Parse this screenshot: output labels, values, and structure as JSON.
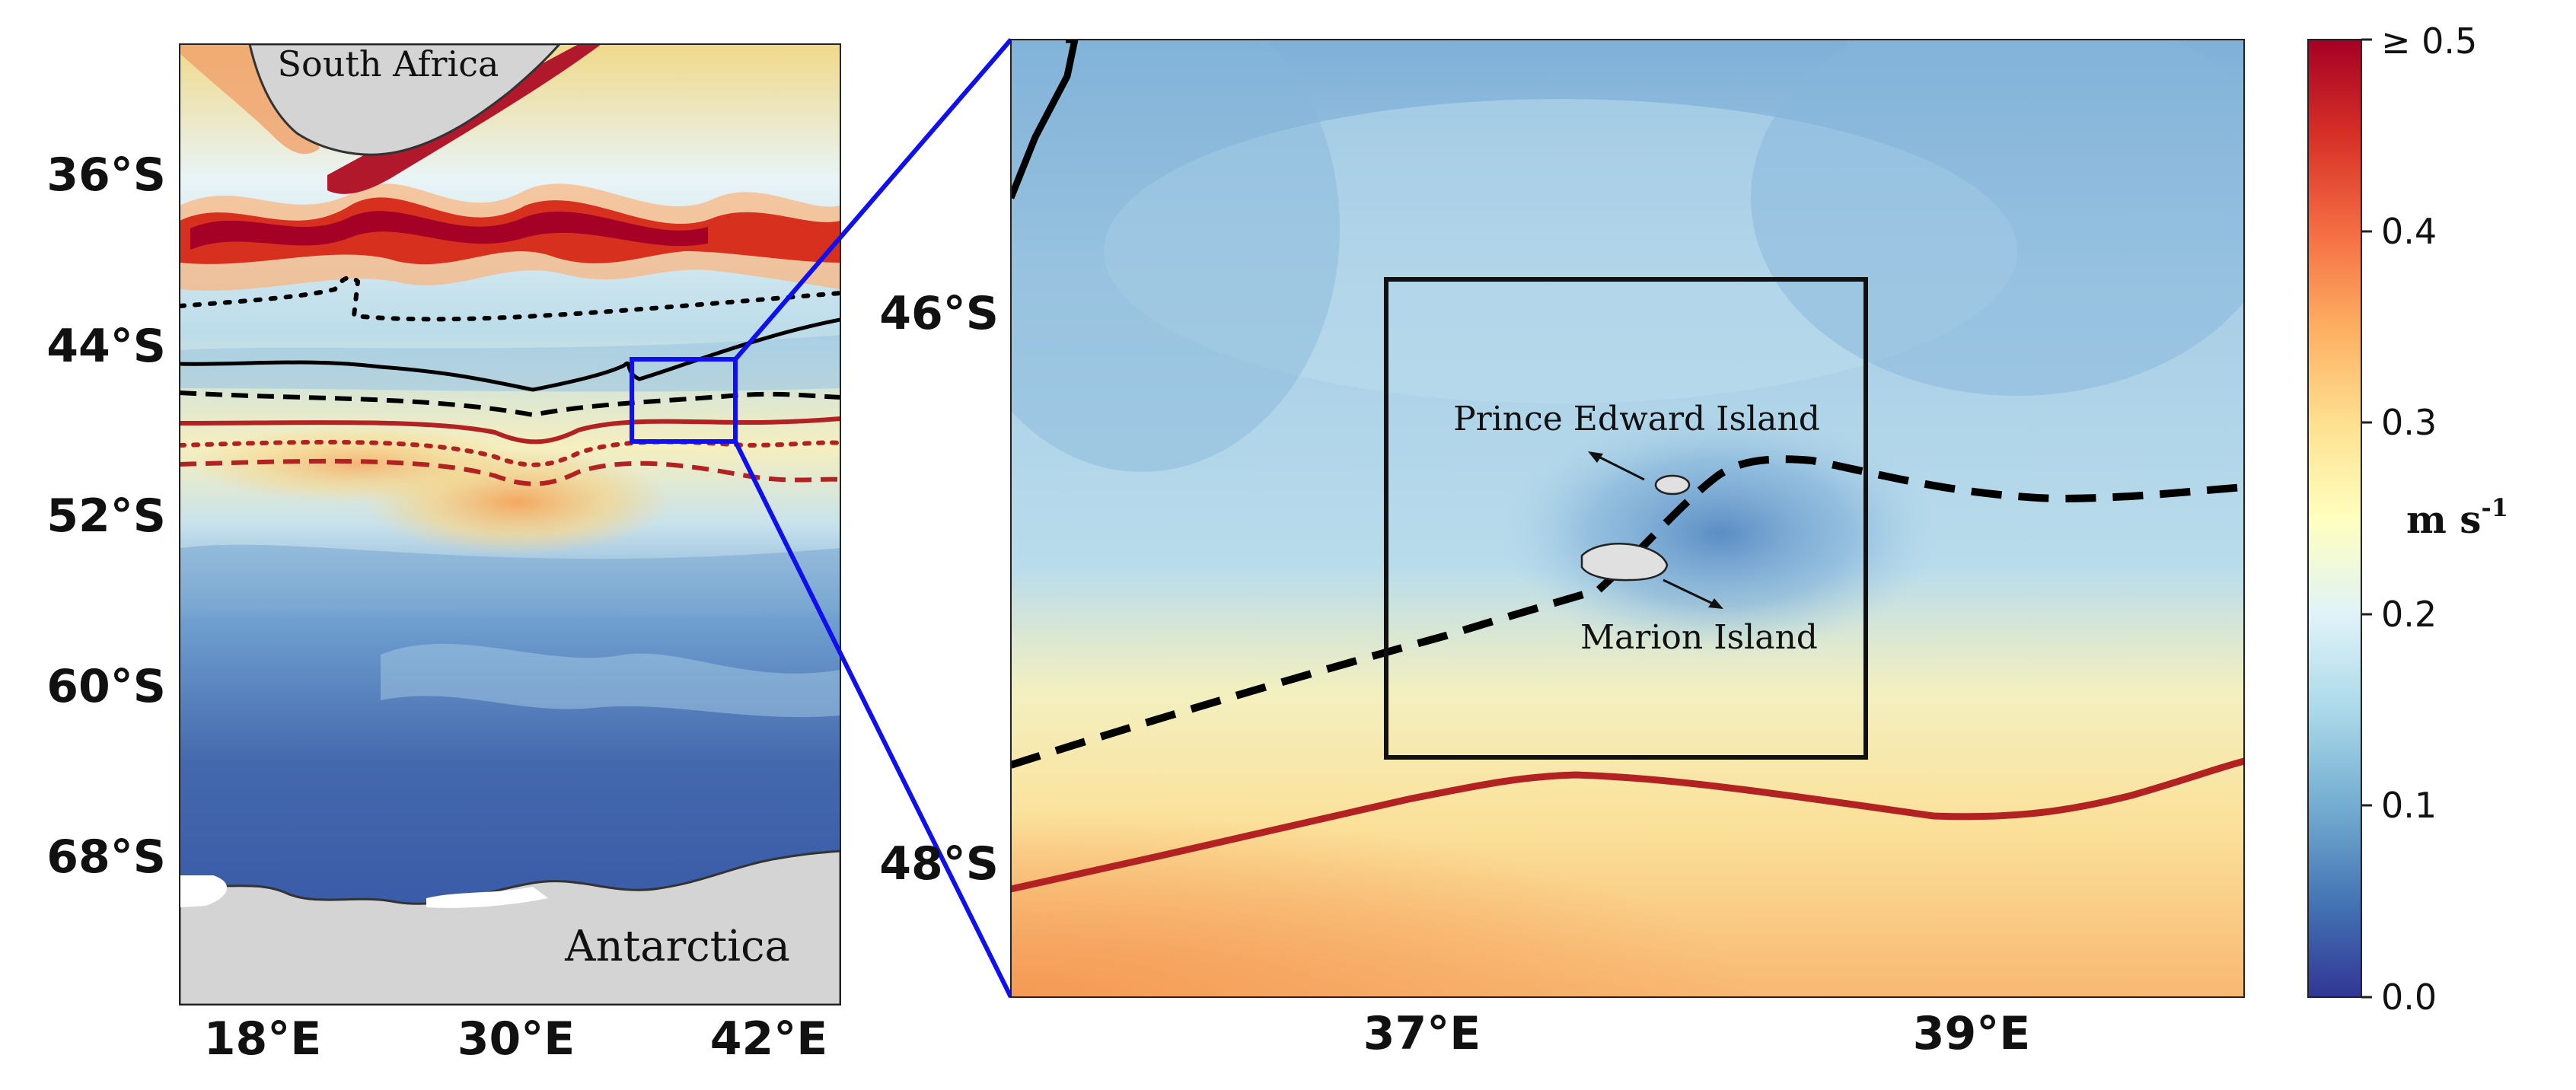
{
  "left_map": {
    "lat_ticks": [
      "36°S",
      "44°S",
      "52°S",
      "60°S",
      "68°S"
    ],
    "lon_ticks": [
      "18°E",
      "30°E",
      "42°E"
    ],
    "labels": {
      "south_africa": "South Africa",
      "antarctica": "Antarctica"
    }
  },
  "right_map": {
    "lat_ticks": [
      "46°S",
      "48°S"
    ],
    "lon_ticks": [
      "37°E",
      "39°E"
    ],
    "labels": {
      "prince_edward": "Prince Edward Island",
      "marion": "Marion Island"
    }
  },
  "colorbar": {
    "ticks": [
      "≥ 0.5",
      "0.4",
      "0.3",
      "0.2",
      "0.1",
      "0.0"
    ],
    "unit_base": "m s",
    "unit_exp": "-1",
    "colors": [
      "#313695",
      "#4575b4",
      "#74add1",
      "#abd9e9",
      "#e0f3f8",
      "#ffffbf",
      "#fee090",
      "#fdae61",
      "#f46d43",
      "#d73027",
      "#a50026"
    ]
  },
  "colors": {
    "zoom_box": "#1010ee",
    "front_red": "#b22222",
    "front_black": "#000000",
    "land": "#d4d4d4"
  }
}
